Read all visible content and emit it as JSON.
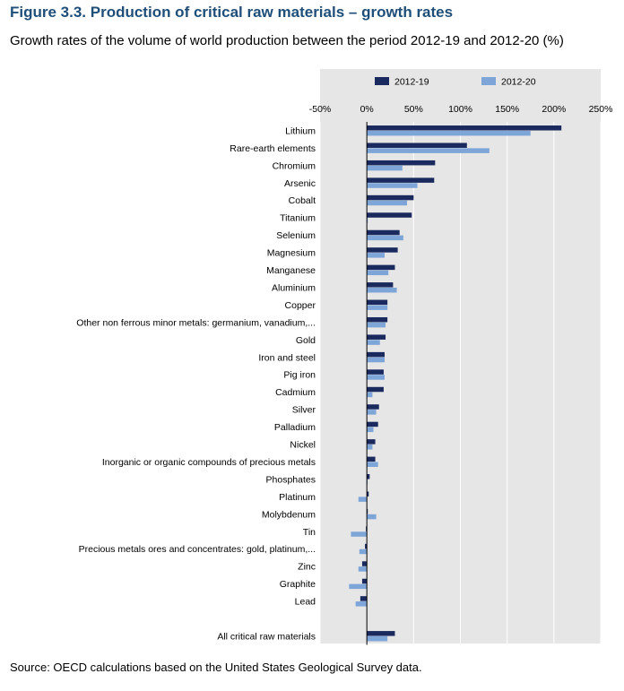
{
  "title": "Figure 3.3. Production of critical raw materials – growth rates",
  "subtitle": "Growth rates of the volume of world production between the period 2012-19 and 2012-20 (%)",
  "source": "Source: OECD calculations based on the United States Geological Survey data.",
  "colors": {
    "series_2012_19": "#1b2a5e",
    "series_2012_20": "#7ea5d8",
    "plot_bg": "#e6e6e6",
    "grid": "#ffffff",
    "title": "#1f4e79"
  },
  "chart_data": {
    "type": "bar",
    "orientation": "horizontal",
    "title": "Figure 3.3. Production of critical raw materials – growth rates",
    "subtitle": "Growth rates of the volume of world production between the period 2012-19 and 2012-20 (%)",
    "xlabel": "",
    "ylabel": "",
    "xlim": [
      -50,
      250
    ],
    "xticks": [
      -50,
      0,
      50,
      100,
      150,
      200,
      250
    ],
    "xtick_labels": [
      "-50%",
      "0%",
      "50%",
      "100%",
      "150%",
      "200%",
      "250%"
    ],
    "legend_position": "top",
    "grid": true,
    "categories": [
      "Lithium",
      "Rare-earth elements",
      "Chromium",
      "Arsenic",
      "Cobalt",
      "Titanium",
      "Selenium",
      "Magnesium",
      "Manganese",
      "Aluminium",
      "Copper",
      "Other non ferrous minor metals: germanium, vanadium,...",
      "Gold",
      "Iron and steel",
      "Pig iron",
      "Cadmium",
      "Silver",
      "Palladium",
      "Nickel",
      "Inorganic or organic compounds of precious metals",
      "Phosphates",
      "Platinum",
      "Molybdenum",
      "Tin",
      "Precious metals ores and concentrates: gold, platinum,...",
      "Zinc",
      "Graphite",
      "Lead",
      "",
      "All critical raw materials"
    ],
    "series": [
      {
        "name": "2012-19",
        "values": [
          208,
          107,
          73,
          72,
          50,
          48,
          35,
          33,
          30,
          28,
          22,
          22,
          20,
          19,
          18,
          18,
          13,
          12,
          9,
          9,
          3,
          2,
          1,
          -1,
          -2,
          -5,
          -5,
          -7,
          null,
          30
        ]
      },
      {
        "name": "2012-20",
        "values": [
          175,
          131,
          38,
          54,
          43,
          1,
          39,
          19,
          23,
          32,
          22,
          20,
          14,
          19,
          19,
          6,
          10,
          7,
          6,
          12,
          0,
          -9,
          10,
          -17,
          -8,
          -9,
          -19,
          -12,
          null,
          22
        ]
      }
    ]
  }
}
